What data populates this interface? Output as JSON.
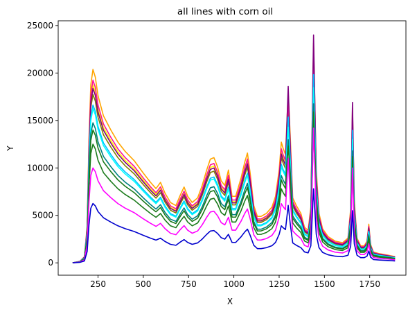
{
  "chart_data": {
    "type": "line",
    "title": "all lines with corn oil",
    "xlabel": "X",
    "ylabel": "Y",
    "xlim": [
      30,
      1950
    ],
    "ylim": [
      -1300,
      25500
    ],
    "xticks": [
      250,
      500,
      750,
      1000,
      1250,
      1500,
      1750
    ],
    "yticks": [
      0,
      5000,
      10000,
      15000,
      20000,
      25000
    ],
    "grid": false,
    "legend": "none",
    "base_profile": {
      "x": [
        110,
        150,
        175,
        190,
        200,
        210,
        222,
        235,
        250,
        280,
        320,
        360,
        400,
        450,
        500,
        540,
        570,
        595,
        620,
        650,
        680,
        705,
        725,
        745,
        770,
        800,
        825,
        850,
        870,
        890,
        910,
        930,
        950,
        970,
        990,
        1010,
        1040,
        1060,
        1075,
        1090,
        1110,
        1130,
        1150,
        1180,
        1210,
        1230,
        1250,
        1262,
        1272,
        1285,
        1300,
        1312,
        1325,
        1345,
        1370,
        1390,
        1410,
        1425,
        1440,
        1455,
        1470,
        1490,
        1520,
        1560,
        1600,
        1630,
        1645,
        1655,
        1665,
        1680,
        1700,
        1720,
        1735,
        1745,
        1755,
        1770,
        1800,
        1850,
        1890
      ],
      "y": [
        0,
        100,
        400,
        2400,
        8000,
        11500,
        12500,
        12000,
        10800,
        9500,
        8600,
        7800,
        7200,
        6600,
        5800,
        5200,
        4800,
        5200,
        4500,
        3900,
        3700,
        4400,
        4900,
        4300,
        3900,
        4200,
        5000,
        6000,
        6700,
        6800,
        6200,
        5300,
        5000,
        6000,
        4300,
        4300,
        5500,
        6500,
        7100,
        5800,
        3700,
        3000,
        3000,
        3200,
        3600,
        4300,
        6000,
        7800,
        7400,
        7000,
        11000,
        8000,
        4200,
        3700,
        3200,
        2300,
        2100,
        3600,
        14200,
        6000,
        3200,
        2200,
        1700,
        1400,
        1300,
        1600,
        3500,
        10000,
        4000,
        1600,
        1100,
        1100,
        1400,
        2500,
        1200,
        700,
        600,
        500,
        400
      ]
    },
    "series": [
      {
        "color": "#ffa500",
        "scale": 1.63
      },
      {
        "color": "#ffff00",
        "scale": 1.5
      },
      {
        "color": "#808000",
        "scale": 1.42
      },
      {
        "color": "#ff1493",
        "scale": 1.54
      },
      {
        "color": "#800080",
        "scale": 1.47,
        "peak_boost": 1.15
      },
      {
        "color": "#00bfff",
        "scale": 1.33,
        "peak_boost": 1.05
      },
      {
        "color": "#00ffff",
        "scale": 1.3
      },
      {
        "color": "#008080",
        "scale": 1.18
      },
      {
        "color": "#1a7a1a",
        "scale": 1.12
      },
      {
        "color": "#1a7a1a",
        "scale": 1.0
      },
      {
        "color": "#ff00ff",
        "scale": 0.8,
        "peak_boost": 1.25
      },
      {
        "color": "#0000cd",
        "scale": 0.5,
        "peak_boost": 1.1
      }
    ]
  }
}
